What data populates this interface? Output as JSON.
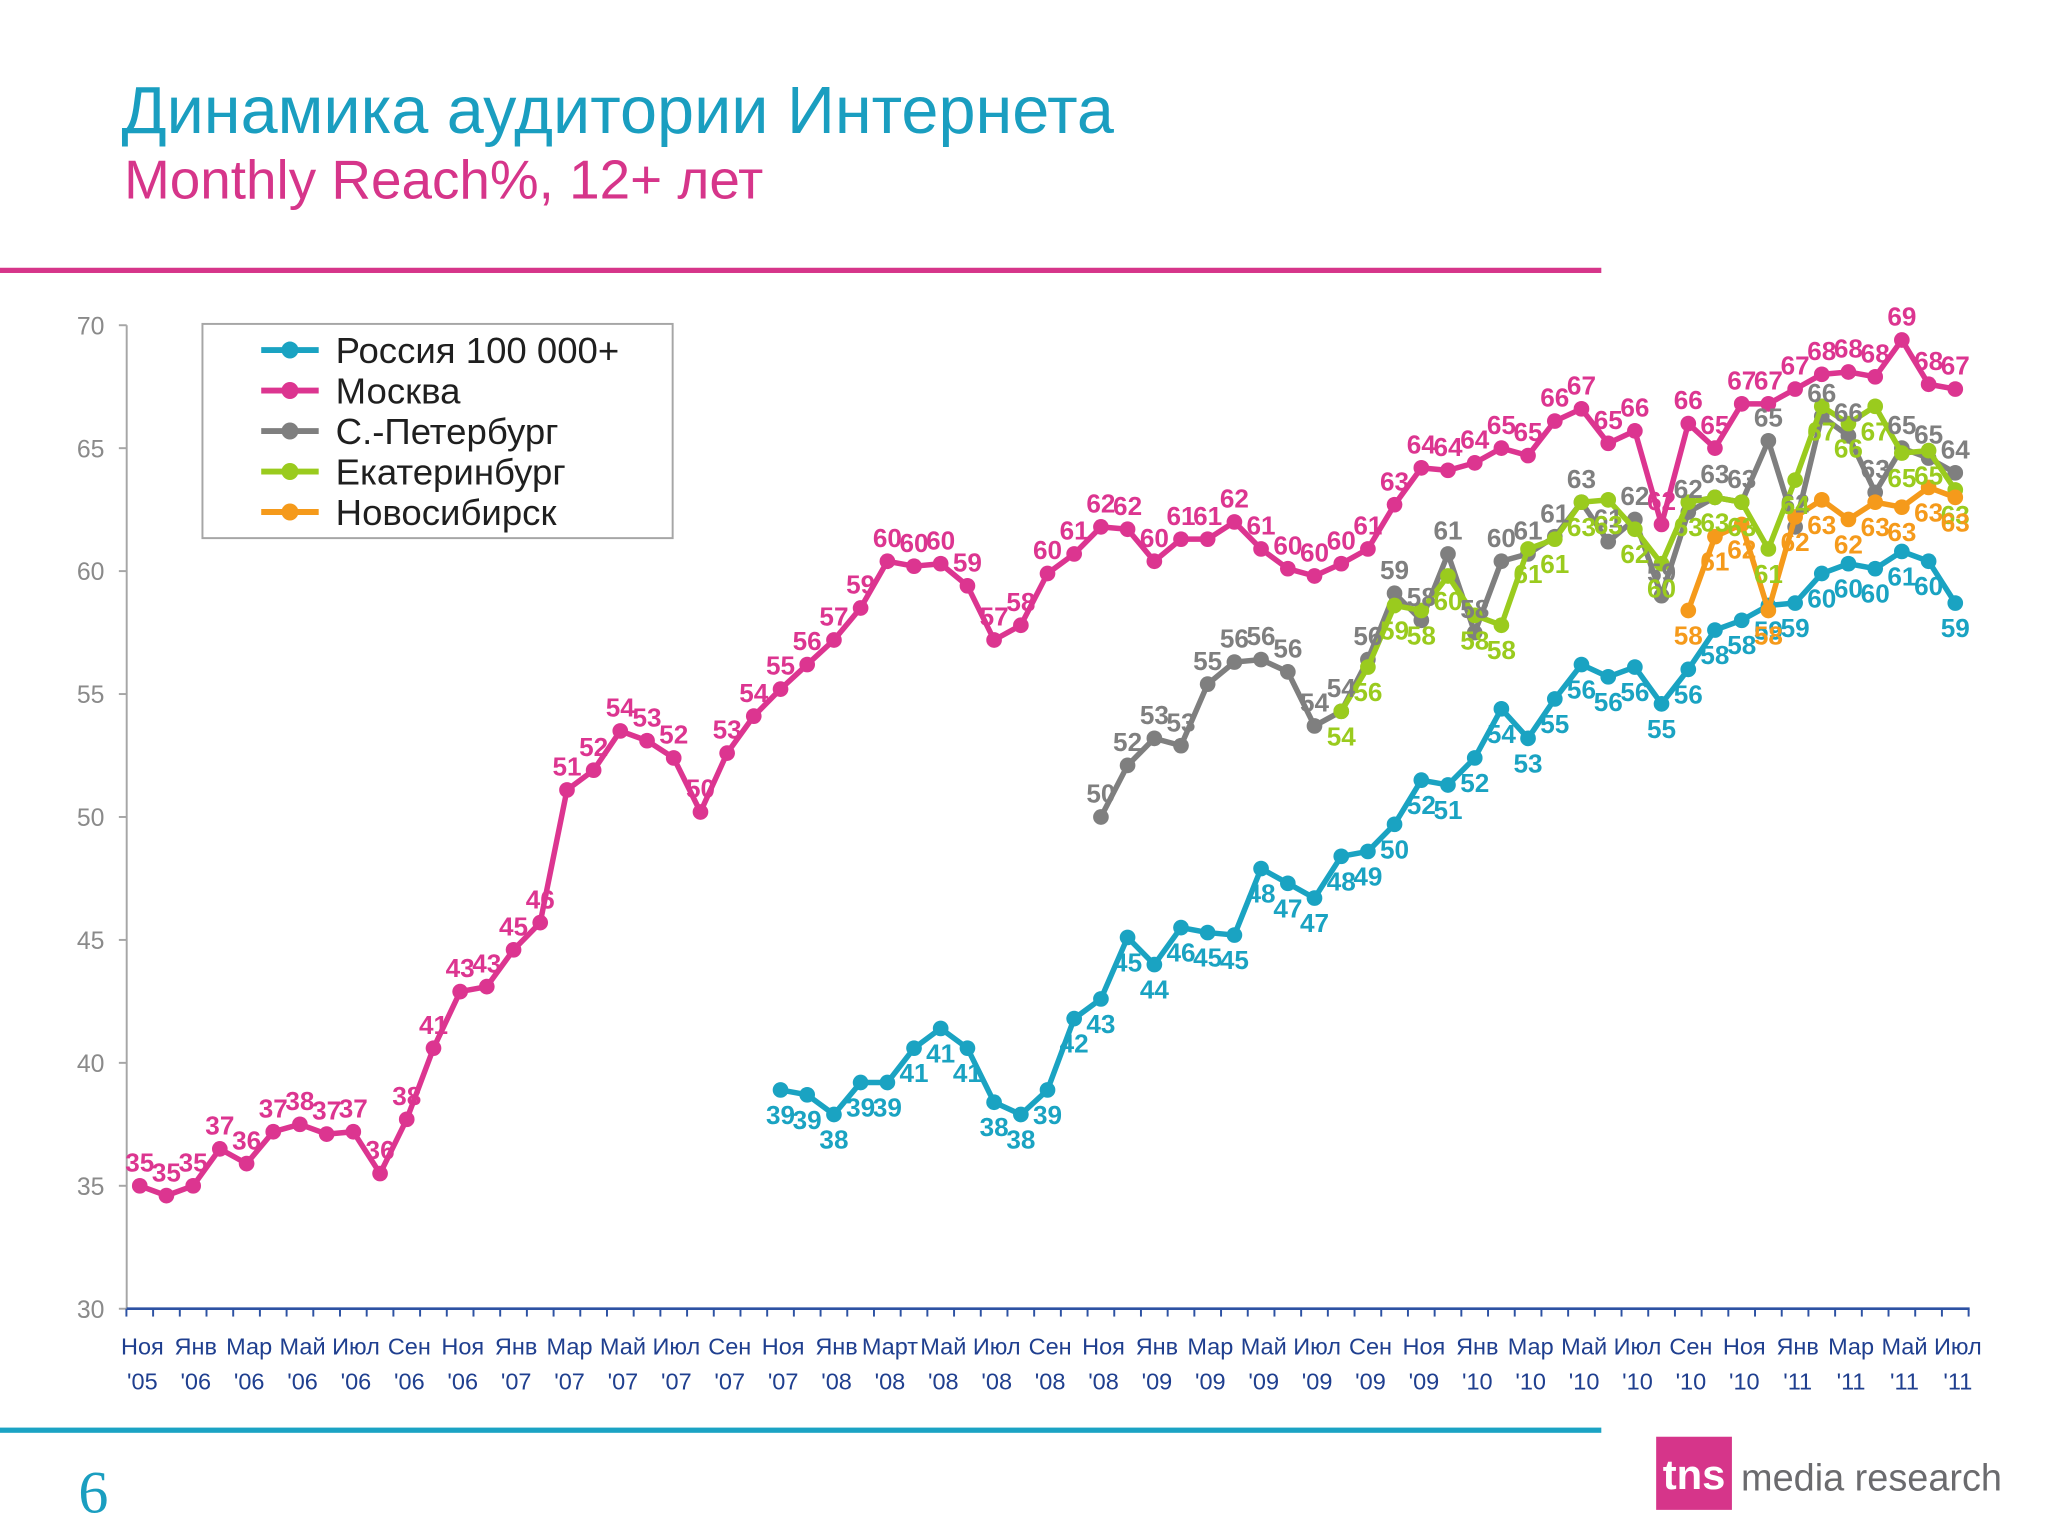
{
  "slide": {
    "title": "Динамика аудитории Интернета",
    "subtitle": "Monthly Reach%, 12+ лет",
    "page_number": "6",
    "title_color": "#1a9ec0",
    "subtitle_color": "#d6358a"
  },
  "logo": {
    "mark": "tns",
    "text": "media research",
    "color": "#d6358a"
  },
  "chart_data": {
    "type": "line",
    "ylim": [
      30,
      70
    ],
    "y_ticks": [
      30,
      35,
      40,
      45,
      50,
      55,
      60,
      65,
      70
    ],
    "x_tick_labels": [
      [
        "Ноя",
        "'05"
      ],
      [
        "Янв",
        "'06"
      ],
      [
        "Мар",
        "'06"
      ],
      [
        "Май",
        "'06"
      ],
      [
        "Июл",
        "'06"
      ],
      [
        "Сен",
        "'06"
      ],
      [
        "Ноя",
        "'06"
      ],
      [
        "Янв",
        "'07"
      ],
      [
        "Мар",
        "'07"
      ],
      [
        "Май",
        "'07"
      ],
      [
        "Июл",
        "'07"
      ],
      [
        "Сен",
        "'07"
      ],
      [
        "Ноя",
        "'07"
      ],
      [
        "Янв",
        "'08"
      ],
      [
        "Март",
        "'08"
      ],
      [
        "Май",
        "'08"
      ],
      [
        "Июл",
        "'08"
      ],
      [
        "Сен",
        "'08"
      ],
      [
        "Ноя",
        "'08"
      ],
      [
        "Янв",
        "'09"
      ],
      [
        "Мар",
        "'09"
      ],
      [
        "Май",
        "'09"
      ],
      [
        "Июл",
        "'09"
      ],
      [
        "Сен",
        "'09"
      ],
      [
        "Ноя",
        "'09"
      ],
      [
        "Янв",
        "'10"
      ],
      [
        "Мар",
        "'10"
      ],
      [
        "Май",
        "'10"
      ],
      [
        "Июл",
        "'10"
      ],
      [
        "Сен",
        "'10"
      ],
      [
        "Ноя",
        "'10"
      ],
      [
        "Янв",
        "'11"
      ],
      [
        "Мар",
        "'11"
      ],
      [
        "Май",
        "'11"
      ],
      [
        "Июл",
        "'11"
      ]
    ],
    "grid": false,
    "legend_position": "top-left",
    "data_labels": true,
    "series": [
      {
        "name": "Россия 100 000+",
        "color": "#1aa3c2",
        "values": [
          null,
          null,
          null,
          null,
          null,
          null,
          null,
          null,
          null,
          null,
          null,
          null,
          null,
          null,
          null,
          null,
          null,
          null,
          null,
          null,
          null,
          null,
          null,
          null,
          38.9,
          38.7,
          37.9,
          39.2,
          39.2,
          40.6,
          41.4,
          40.6,
          38.4,
          37.9,
          38.9,
          41.8,
          42.6,
          45.1,
          44.0,
          45.5,
          45.3,
          45.2,
          47.9,
          47.3,
          46.7,
          48.4,
          48.6,
          49.7,
          51.5,
          51.3,
          52.4,
          54.4,
          53.2,
          54.8,
          56.2,
          55.7,
          56.1,
          54.6,
          56.0,
          57.6,
          58.0,
          58.6,
          58.7,
          59.9,
          60.3,
          60.1,
          60.8,
          60.4,
          58.7
        ]
      },
      {
        "name": "Москва",
        "color": "#dc3590",
        "values": [
          35.0,
          34.6,
          35.0,
          36.5,
          35.9,
          37.2,
          37.5,
          37.1,
          37.2,
          35.5,
          37.7,
          40.6,
          42.9,
          43.1,
          44.6,
          45.7,
          51.1,
          51.9,
          53.5,
          53.1,
          52.4,
          50.2,
          52.6,
          54.1,
          55.2,
          56.2,
          57.2,
          58.5,
          60.4,
          60.2,
          60.3,
          59.4,
          57.2,
          57.8,
          59.9,
          60.7,
          61.8,
          61.7,
          60.4,
          61.3,
          61.3,
          62.0,
          60.9,
          60.1,
          59.8,
          60.3,
          60.9,
          62.7,
          64.2,
          64.1,
          64.4,
          65.0,
          64.7,
          66.1,
          66.6,
          65.2,
          65.7,
          61.9,
          66.0,
          65.0,
          66.8,
          66.8,
          67.4,
          68.0,
          68.1,
          67.9,
          69.4,
          67.6,
          67.4
        ]
      },
      {
        "name": "С.-Петербург",
        "color": "#7f7f7f",
        "values": [
          null,
          null,
          null,
          null,
          null,
          null,
          null,
          null,
          null,
          null,
          null,
          null,
          null,
          null,
          null,
          null,
          null,
          null,
          null,
          null,
          null,
          null,
          null,
          null,
          null,
          null,
          null,
          null,
          null,
          null,
          null,
          null,
          null,
          null,
          null,
          null,
          50.0,
          52.1,
          53.2,
          52.9,
          55.4,
          56.3,
          56.4,
          55.9,
          53.7,
          54.3,
          56.4,
          59.1,
          58.0,
          60.7,
          57.5,
          60.4,
          60.7,
          61.4,
          62.8,
          61.2,
          62.1,
          59.0,
          62.4,
          63.0,
          62.8,
          65.3,
          61.8,
          66.3,
          65.5,
          63.2,
          65.0,
          64.6,
          64.0
        ]
      },
      {
        "name": "Екатеринбург",
        "color": "#9acb1e",
        "values": [
          null,
          null,
          null,
          null,
          null,
          null,
          null,
          null,
          null,
          null,
          null,
          null,
          null,
          null,
          null,
          null,
          null,
          null,
          null,
          null,
          null,
          null,
          null,
          null,
          null,
          null,
          null,
          null,
          null,
          null,
          null,
          null,
          null,
          null,
          null,
          null,
          null,
          null,
          null,
          null,
          null,
          null,
          null,
          null,
          null,
          54.3,
          56.1,
          58.6,
          58.4,
          59.8,
          58.2,
          57.8,
          60.9,
          61.3,
          62.8,
          62.9,
          61.7,
          60.3,
          62.8,
          63.0,
          62.8,
          60.9,
          63.7,
          66.7,
          66.0,
          66.7,
          64.8,
          64.9,
          63.3
        ]
      },
      {
        "name": "Новосибирск",
        "color": "#f59a1b",
        "values": [
          null,
          null,
          null,
          null,
          null,
          null,
          null,
          null,
          null,
          null,
          null,
          null,
          null,
          null,
          null,
          null,
          null,
          null,
          null,
          null,
          null,
          null,
          null,
          null,
          null,
          null,
          null,
          null,
          null,
          null,
          null,
          null,
          null,
          null,
          null,
          null,
          null,
          null,
          null,
          null,
          null,
          null,
          null,
          null,
          null,
          null,
          null,
          null,
          null,
          null,
          null,
          null,
          null,
          null,
          null,
          null,
          null,
          null,
          58.4,
          61.4,
          61.9,
          58.4,
          62.2,
          62.9,
          62.1,
          62.8,
          62.6,
          63.4,
          63.0
        ]
      }
    ]
  }
}
